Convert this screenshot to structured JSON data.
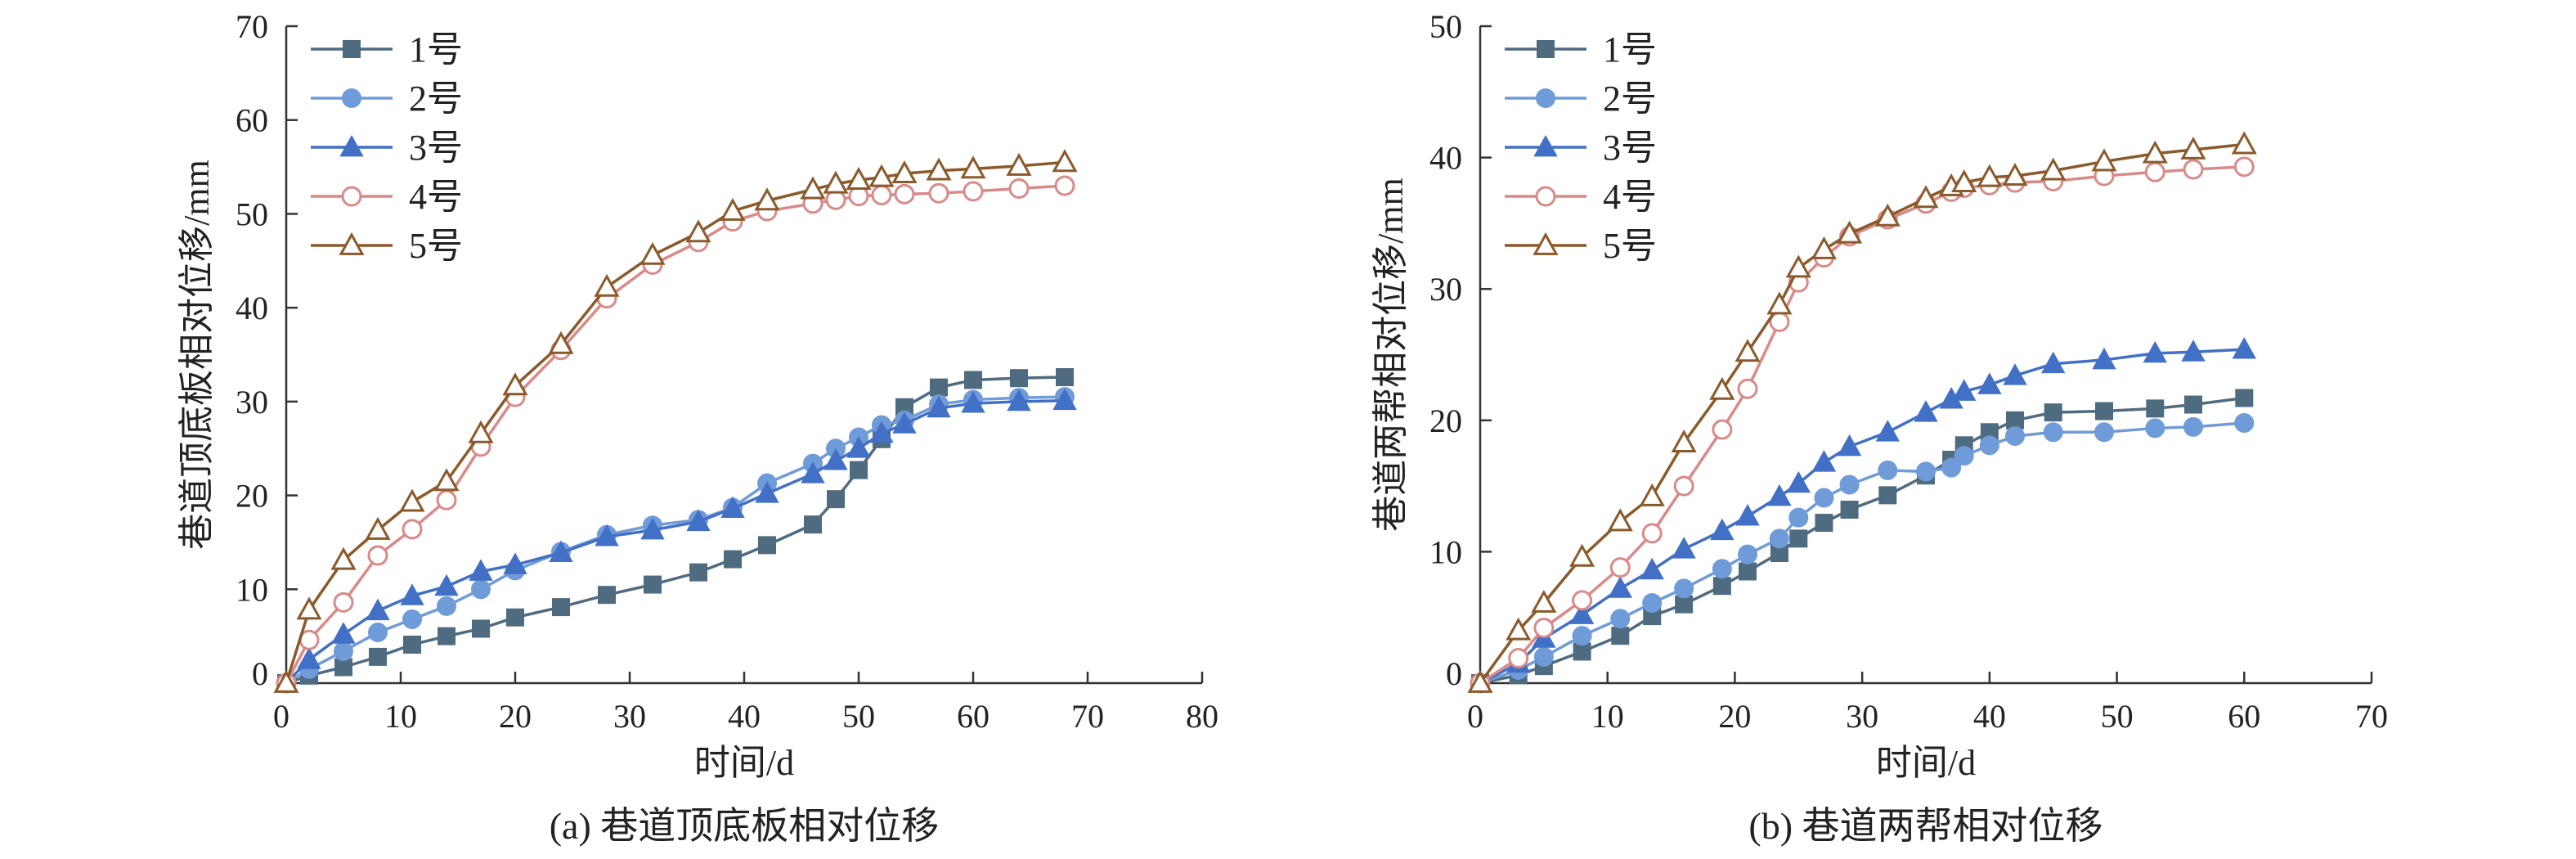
{
  "chart_data": [
    {
      "type": "line",
      "xlabel": "时间/d",
      "ylabel": "巷道顶底板相对位移/mm",
      "caption": "(a) 巷道顶底板相对位移",
      "xlim": [
        0,
        80
      ],
      "ylim": [
        0,
        70
      ],
      "xticks": [
        0,
        10,
        20,
        30,
        40,
        50,
        60,
        70,
        80
      ],
      "yticks": [
        10,
        20,
        30,
        40,
        50,
        60,
        70
      ],
      "legend_position": "top-left",
      "series": [
        {
          "name": "1号",
          "marker": "square-filled",
          "color": "#4f6b80",
          "x": [
            0,
            2,
            5,
            8,
            11,
            14,
            17,
            20,
            24,
            28,
            32,
            36,
            39,
            42,
            46,
            48,
            50,
            52,
            54,
            57,
            60,
            64,
            68
          ],
          "y": [
            0,
            0.8,
            1.7,
            2.8,
            4.1,
            5.0,
            5.8,
            7.0,
            8.1,
            9.4,
            10.5,
            11.8,
            13.2,
            14.7,
            16.9,
            19.6,
            22.7,
            26.0,
            29.4,
            31.5,
            32.3,
            32.5,
            32.6
          ]
        },
        {
          "name": "2号",
          "marker": "circle-filled",
          "color": "#6f9bd8",
          "x": [
            0,
            2,
            5,
            8,
            11,
            14,
            17,
            20,
            24,
            28,
            32,
            36,
            39,
            42,
            46,
            48,
            50,
            52,
            54,
            57,
            60,
            64,
            68
          ],
          "y": [
            0,
            1.5,
            3.4,
            5.4,
            6.8,
            8.2,
            10.0,
            12.0,
            14.0,
            15.8,
            16.8,
            17.4,
            18.7,
            21.3,
            23.4,
            25.0,
            26.2,
            27.5,
            28.0,
            29.7,
            30.2,
            30.4,
            30.5
          ]
        },
        {
          "name": "3号",
          "marker": "triangle-filled",
          "color": "#4270c6",
          "x": [
            0,
            2,
            5,
            8,
            11,
            14,
            17,
            20,
            24,
            28,
            32,
            36,
            39,
            42,
            46,
            48,
            50,
            52,
            54,
            57,
            60,
            64,
            68
          ],
          "y": [
            0,
            2.5,
            5.2,
            7.7,
            9.3,
            10.3,
            11.9,
            12.6,
            13.9,
            15.6,
            16.3,
            17.2,
            18.6,
            20.2,
            22.3,
            23.7,
            25.0,
            26.6,
            27.6,
            29.3,
            29.8,
            30.0,
            30.1
          ]
        },
        {
          "name": "4号",
          "marker": "circle-open",
          "color": "#d98a88",
          "x": [
            0,
            2,
            5,
            8,
            11,
            14,
            17,
            20,
            24,
            28,
            32,
            36,
            39,
            42,
            46,
            48,
            50,
            52,
            54,
            57,
            60,
            64,
            68
          ],
          "y": [
            0,
            4.6,
            8.6,
            13.6,
            16.4,
            19.5,
            25.2,
            30.5,
            35.5,
            41.0,
            44.6,
            47.0,
            49.2,
            50.3,
            51.1,
            51.5,
            51.9,
            52.0,
            52.1,
            52.2,
            52.4,
            52.7,
            53.0
          ]
        },
        {
          "name": "5号",
          "marker": "triangle-open",
          "color": "#8b5a2b",
          "x": [
            0,
            2,
            5,
            8,
            11,
            14,
            17,
            20,
            24,
            28,
            32,
            36,
            39,
            42,
            46,
            48,
            50,
            52,
            54,
            57,
            60,
            64,
            68
          ],
          "y": [
            0,
            7.8,
            13.1,
            16.3,
            19.3,
            21.5,
            26.6,
            31.7,
            36.1,
            42.2,
            45.6,
            48.0,
            50.3,
            51.4,
            52.6,
            53.2,
            53.6,
            53.9,
            54.3,
            54.6,
            54.8,
            55.1,
            55.5
          ]
        }
      ]
    },
    {
      "type": "line",
      "xlabel": "时间/d",
      "ylabel": "巷道两帮相对位移/mm",
      "caption": "(b) 巷道两帮相对位移",
      "xlim": [
        0,
        70
      ],
      "ylim": [
        0,
        50
      ],
      "xticks": [
        0,
        10,
        20,
        30,
        40,
        50,
        60,
        70
      ],
      "yticks": [
        10,
        20,
        30,
        40,
        50
      ],
      "legend_position": "top-left",
      "series": [
        {
          "name": "1号",
          "marker": "square-filled",
          "color": "#4f6b80",
          "x": [
            0,
            3,
            5,
            8,
            11,
            13.5,
            16,
            19,
            21,
            23.5,
            25,
            27,
            29,
            32,
            35,
            37,
            38,
            40,
            42,
            45,
            49,
            53,
            56,
            60
          ],
          "y": [
            0,
            0.6,
            1.3,
            2.4,
            3.6,
            5.1,
            6.0,
            7.4,
            8.5,
            9.9,
            11.0,
            12.2,
            13.2,
            14.3,
            15.8,
            17.0,
            18.1,
            19.1,
            20.0,
            20.6,
            20.7,
            20.9,
            21.2,
            21.7
          ]
        },
        {
          "name": "2号",
          "marker": "circle-filled",
          "color": "#6f9bd8",
          "x": [
            0,
            3,
            5,
            8,
            11,
            13.5,
            16,
            19,
            21,
            23.5,
            25,
            27,
            29,
            32,
            35,
            37,
            38,
            40,
            42,
            45,
            49,
            53,
            56,
            60
          ],
          "y": [
            0,
            1.0,
            2.0,
            3.6,
            4.9,
            6.1,
            7.2,
            8.7,
            9.8,
            11.0,
            12.6,
            14.1,
            15.1,
            16.2,
            16.1,
            16.4,
            17.3,
            18.1,
            18.8,
            19.1,
            19.1,
            19.4,
            19.5,
            19.8
          ]
        },
        {
          "name": "3号",
          "marker": "triangle-filled",
          "color": "#4270c6",
          "x": [
            0,
            3,
            5,
            8,
            11,
            13.5,
            16,
            19,
            21,
            23.5,
            25,
            27,
            29,
            32,
            35,
            37,
            38,
            40,
            42,
            45,
            49,
            53,
            56,
            60
          ],
          "y": [
            0,
            1.5,
            3.4,
            5.2,
            7.2,
            8.6,
            10.2,
            11.6,
            12.7,
            14.2,
            15.2,
            16.8,
            18.0,
            19.1,
            20.6,
            21.6,
            22.2,
            22.7,
            23.4,
            24.3,
            24.6,
            25.1,
            25.2,
            25.4
          ]
        },
        {
          "name": "4号",
          "marker": "circle-open",
          "color": "#d98a88",
          "x": [
            0,
            3,
            5,
            8,
            11,
            13.5,
            16,
            19,
            21,
            23.5,
            25,
            27,
            29,
            32,
            35,
            37,
            38,
            40,
            42,
            45,
            49,
            53,
            56,
            60
          ],
          "y": [
            0,
            1.9,
            4.2,
            6.3,
            8.8,
            11.4,
            15.0,
            19.3,
            22.4,
            27.5,
            30.5,
            32.4,
            34.0,
            35.3,
            36.5,
            37.4,
            37.7,
            37.9,
            38.1,
            38.2,
            38.6,
            38.9,
            39.1,
            39.3
          ]
        },
        {
          "name": "5号",
          "marker": "triangle-open",
          "color": "#8b5a2b",
          "x": [
            0,
            3,
            5,
            8,
            11,
            13.5,
            16,
            19,
            21,
            23.5,
            25,
            27,
            29,
            32,
            35,
            37,
            38,
            40,
            42,
            45,
            49,
            53,
            56,
            60
          ],
          "y": [
            0,
            4.0,
            6.1,
            9.6,
            12.3,
            14.2,
            18.3,
            22.3,
            25.2,
            28.8,
            31.6,
            33.0,
            34.2,
            35.5,
            36.9,
            37.8,
            38.1,
            38.5,
            38.6,
            39.0,
            39.7,
            40.3,
            40.6,
            41.0
          ]
        }
      ]
    }
  ]
}
